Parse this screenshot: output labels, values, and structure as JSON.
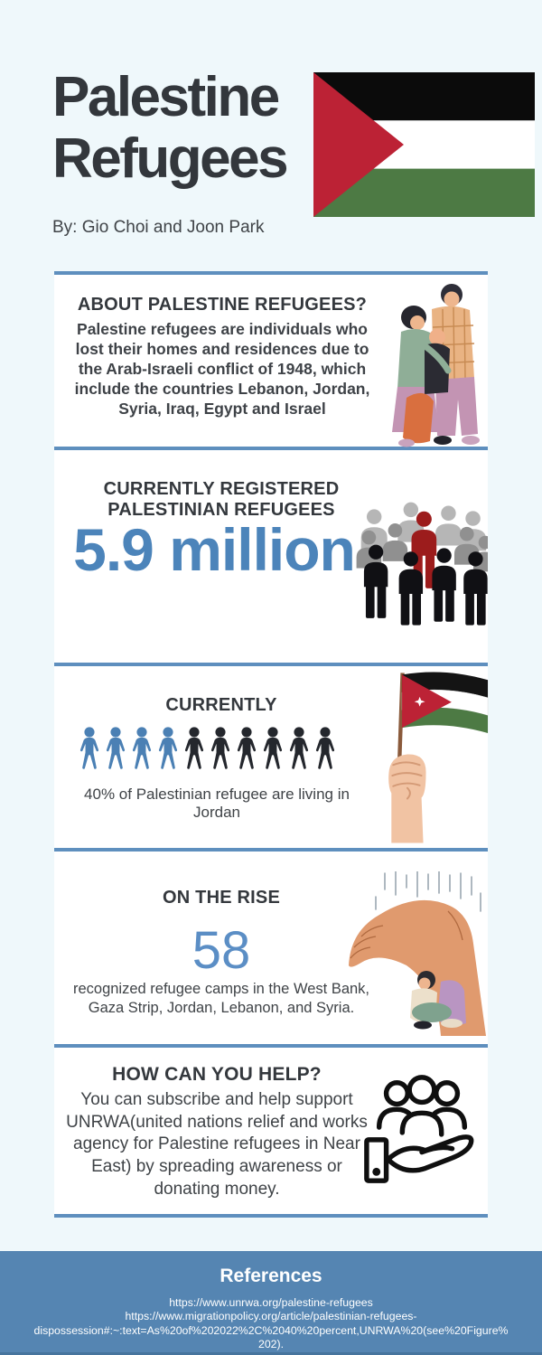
{
  "palette": {
    "background": "#eff8fb",
    "card": "#ffffff",
    "accent_blue": "#5e8fbe",
    "footer_blue": "#5585b2",
    "stat_blue": "#4c84ba",
    "heading_dark": "#34383d",
    "pictogram_blue": "#4b80b4",
    "pictogram_dark": "#24272d",
    "flag_red": "#bc2235",
    "flag_green": "#4d7a44",
    "crowd_red": "#9c1c1c"
  },
  "header": {
    "title_line1": "Palestine",
    "title_line2": "Refugees",
    "byline": "By: Gio Choi and Joon Park",
    "flag_icon": "palestine-flag-icon"
  },
  "sections": {
    "about": {
      "heading": "ABOUT PALESTINE REFUGEES?",
      "body": "Palestine refugees are individuals who lost their homes and residences due to the Arab-Israeli conflict of 1948, which include the countries Lebanon, Jordan, Syria, Iraq, Egypt and Israel",
      "illustration": "family-hug-illustration"
    },
    "registered": {
      "heading": "CURRENTLY REGISTERED PALESTINIAN REFUGEES",
      "stat": "5.9 million",
      "illustration": "crowd-icon"
    },
    "currently": {
      "heading": "CURRENTLY",
      "pictogram": {
        "total": 10,
        "highlighted": 4
      },
      "caption": "40% of Palestinian refugee are living in Jordan",
      "illustration": "hand-holding-jordan-flag-illustration"
    },
    "rise": {
      "heading": "ON THE RISE",
      "stat": "58",
      "body": "recognized refugee camps in the West Bank, Gaza Strip, Jordan, Lebanon, and Syria.",
      "illustration": "sheltering-hand-illustration"
    },
    "help": {
      "heading": "HOW CAN YOU HELP?",
      "body": "You can subscribe and help support UNRWA(united nations relief and works agency for Palestine refugees in Near East) by spreading awareness or donating money.",
      "illustration": "donate-people-icon"
    }
  },
  "footer": {
    "heading": "References",
    "reference_lines": [
      "https://www.unrwa.org/palestine-refugees",
      "https://www.migrationpolicy.org/article/palestinian-refugees-",
      "dispossession#:~:text=As%20of%202022%2C%2040%20percent,UNRWA%20(see%20Figure%",
      "202)."
    ]
  }
}
